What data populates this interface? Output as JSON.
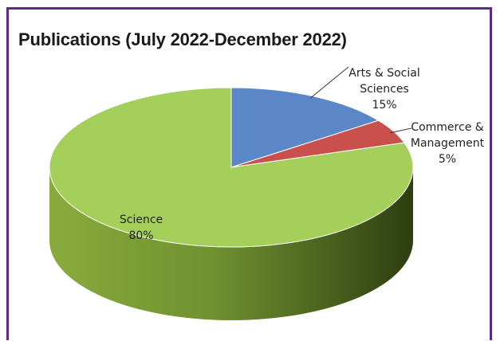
{
  "chart_data": {
    "type": "pie",
    "title": "Publications (July 2022-December 2022)",
    "slices": [
      {
        "label_lines": [
          "Arts & Social",
          "Sciences"
        ],
        "value_label": "15%",
        "value": 15,
        "color": "#5b87c9"
      },
      {
        "label_lines": [
          "Commerce &",
          "Management"
        ],
        "value_label": "5%",
        "value": 5,
        "color": "#c9504d"
      },
      {
        "label_lines": [
          "Science"
        ],
        "value_label": "80%",
        "value": 80,
        "color": "#a4cf5a"
      }
    ]
  }
}
